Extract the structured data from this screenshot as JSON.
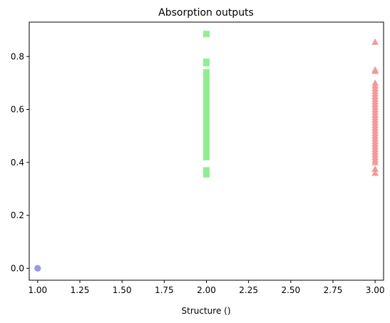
{
  "chart_data": {
    "type": "scatter",
    "title": "Absorption outputs",
    "xlabel": "Structure ()",
    "ylabel": "",
    "xlim": [
      0.95,
      3.05
    ],
    "ylim": [
      -0.045,
      0.93
    ],
    "x_ticks": [
      1.0,
      1.25,
      1.5,
      1.75,
      2.0,
      2.25,
      2.5,
      2.75,
      3.0
    ],
    "x_tick_labels": [
      "1.00",
      "1.25",
      "1.50",
      "1.75",
      "2.00",
      "2.25",
      "2.50",
      "2.75",
      "3.00"
    ],
    "y_ticks": [
      0.0,
      0.2,
      0.4,
      0.6,
      0.8
    ],
    "y_tick_labels": [
      "0.0",
      "0.2",
      "0.4",
      "0.6",
      "0.8"
    ],
    "grid": false,
    "legend": "none",
    "series": [
      {
        "marker": "circle",
        "color": "#9a98ec",
        "points": [
          [
            1,
            0.0
          ],
          [
            1,
            0.0
          ],
          [
            1,
            0.0
          ]
        ]
      },
      {
        "marker": "square",
        "color": "#90ee90",
        "points": [
          [
            2,
            0.885
          ],
          [
            2,
            0.78
          ],
          [
            2,
            0.775
          ],
          [
            2,
            0.74
          ],
          [
            2,
            0.73
          ],
          [
            2,
            0.72
          ],
          [
            2,
            0.71
          ],
          [
            2,
            0.7
          ],
          [
            2,
            0.69
          ],
          [
            2,
            0.68
          ],
          [
            2,
            0.67
          ],
          [
            2,
            0.66
          ],
          [
            2,
            0.65
          ],
          [
            2,
            0.64
          ],
          [
            2,
            0.63
          ],
          [
            2,
            0.62
          ],
          [
            2,
            0.61
          ],
          [
            2,
            0.6
          ],
          [
            2,
            0.59
          ],
          [
            2,
            0.58
          ],
          [
            2,
            0.57
          ],
          [
            2,
            0.56
          ],
          [
            2,
            0.55
          ],
          [
            2,
            0.54
          ],
          [
            2,
            0.53
          ],
          [
            2,
            0.52
          ],
          [
            2,
            0.51
          ],
          [
            2,
            0.5
          ],
          [
            2,
            0.49
          ],
          [
            2,
            0.48
          ],
          [
            2,
            0.47
          ],
          [
            2,
            0.46
          ],
          [
            2,
            0.45
          ],
          [
            2,
            0.44
          ],
          [
            2,
            0.43
          ],
          [
            2,
            0.42
          ],
          [
            2,
            0.37
          ],
          [
            2,
            0.355
          ]
        ]
      },
      {
        "marker": "triangle",
        "color": "#f4999a",
        "points": [
          [
            3,
            0.855
          ],
          [
            3,
            0.75
          ],
          [
            3,
            0.745
          ],
          [
            3,
            0.7
          ],
          [
            3,
            0.69
          ],
          [
            3,
            0.68
          ],
          [
            3,
            0.67
          ],
          [
            3,
            0.66
          ],
          [
            3,
            0.65
          ],
          [
            3,
            0.64
          ],
          [
            3,
            0.63
          ],
          [
            3,
            0.62
          ],
          [
            3,
            0.61
          ],
          [
            3,
            0.6
          ],
          [
            3,
            0.59
          ],
          [
            3,
            0.58
          ],
          [
            3,
            0.57
          ],
          [
            3,
            0.56
          ],
          [
            3,
            0.55
          ],
          [
            3,
            0.54
          ],
          [
            3,
            0.53
          ],
          [
            3,
            0.52
          ],
          [
            3,
            0.51
          ],
          [
            3,
            0.5
          ],
          [
            3,
            0.49
          ],
          [
            3,
            0.48
          ],
          [
            3,
            0.47
          ],
          [
            3,
            0.46
          ],
          [
            3,
            0.45
          ],
          [
            3,
            0.44
          ],
          [
            3,
            0.43
          ],
          [
            3,
            0.42
          ],
          [
            3,
            0.41
          ],
          [
            3,
            0.4
          ],
          [
            3,
            0.375
          ],
          [
            3,
            0.36
          ]
        ]
      }
    ]
  }
}
